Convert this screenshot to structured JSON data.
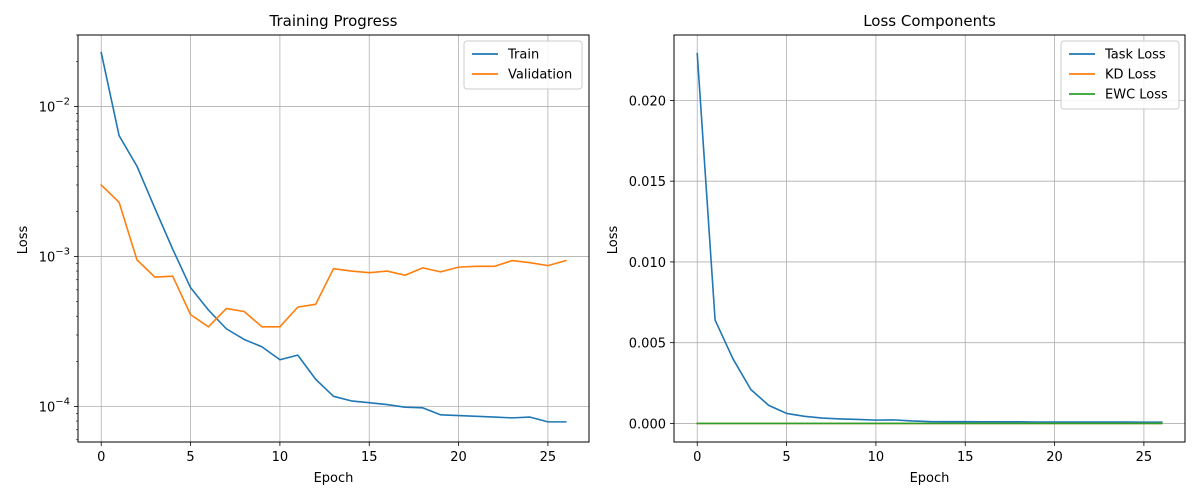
{
  "chart_data": [
    {
      "type": "line",
      "title": "Training Progress",
      "xlabel": "Epoch",
      "ylabel": "Loss",
      "yscale": "log",
      "xlim": [
        -1.3,
        27.3
      ],
      "ylim": [
        5.8e-05,
        0.03
      ],
      "grid": true,
      "legend_position": "top-right",
      "x": [
        0,
        1,
        2,
        3,
        4,
        5,
        6,
        7,
        8,
        9,
        10,
        11,
        12,
        13,
        14,
        15,
        16,
        17,
        18,
        19,
        20,
        21,
        22,
        23,
        24,
        25,
        26
      ],
      "x_ticks": [
        0,
        5,
        10,
        15,
        20,
        25
      ],
      "y_ticks": [
        {
          "base": "10",
          "exp": "−2",
          "value": 0.01
        },
        {
          "base": "10",
          "exp": "−3",
          "value": 0.001
        },
        {
          "base": "10",
          "exp": "−4",
          "value": 0.0001
        }
      ],
      "series": [
        {
          "name": "Train",
          "color": "#1f77b4",
          "values": [
            0.0229,
            0.0064,
            0.004,
            0.0021,
            0.00112,
            0.00062,
            0.00044,
            0.00033,
            0.00028,
            0.00025,
            0.000205,
            0.00022,
            0.000152,
            0.000117,
            0.000109,
            0.000106,
            0.000103,
            9.9e-05,
            9.8e-05,
            8.8e-05,
            8.7e-05,
            8.6e-05,
            8.5e-05,
            8.4e-05,
            8.5e-05,
            7.9e-05,
            7.9e-05
          ]
        },
        {
          "name": "Validation",
          "color": "#ff7f0e",
          "values": [
            0.003,
            0.0023,
            0.00095,
            0.00073,
            0.00074,
            0.00041,
            0.00034,
            0.00045,
            0.00043,
            0.00034,
            0.00034,
            0.00046,
            0.00048,
            0.00083,
            0.0008,
            0.00078,
            0.0008,
            0.00075,
            0.00084,
            0.00079,
            0.00085,
            0.00086,
            0.00086,
            0.00094,
            0.00091,
            0.00087,
            0.00094
          ]
        }
      ]
    },
    {
      "type": "line",
      "title": "Loss Components",
      "xlabel": "Epoch",
      "ylabel": "Loss",
      "yscale": "linear",
      "xlim": [
        -1.3,
        27.3
      ],
      "ylim": [
        -0.00115,
        0.02405
      ],
      "grid": true,
      "legend_position": "top-right",
      "x": [
        0,
        1,
        2,
        3,
        4,
        5,
        6,
        7,
        8,
        9,
        10,
        11,
        12,
        13,
        14,
        15,
        16,
        17,
        18,
        19,
        20,
        21,
        22,
        23,
        24,
        25,
        26
      ],
      "x_ticks": [
        0,
        5,
        10,
        15,
        20,
        25
      ],
      "y_ticks": [
        "0.000",
        "0.005",
        "0.010",
        "0.015",
        "0.020"
      ],
      "series": [
        {
          "name": "Task Loss",
          "color": "#1f77b4",
          "values": [
            0.0229,
            0.0064,
            0.004,
            0.0021,
            0.00112,
            0.00062,
            0.00044,
            0.00033,
            0.00028,
            0.00025,
            0.000205,
            0.00022,
            0.000152,
            0.000117,
            0.000109,
            0.000106,
            0.000103,
            9.9e-05,
            9.8e-05,
            8.8e-05,
            8.7e-05,
            8.6e-05,
            8.5e-05,
            8.4e-05,
            8.5e-05,
            7.9e-05,
            7.9e-05
          ]
        },
        {
          "name": "KD Loss",
          "color": "#ff7f0e",
          "values": [
            0,
            0,
            0,
            0,
            0,
            0,
            0,
            0,
            0,
            0,
            0,
            0,
            0,
            0,
            0,
            0,
            0,
            0,
            0,
            0,
            0,
            0,
            0,
            0,
            0,
            0,
            0
          ]
        },
        {
          "name": "EWC Loss",
          "color": "#2ca02c",
          "values": [
            0,
            0,
            0,
            0,
            0,
            0,
            0,
            0,
            0,
            0,
            0,
            0,
            0,
            0,
            0,
            0,
            0,
            0,
            0,
            0,
            0,
            0,
            0,
            0,
            0,
            0,
            0
          ]
        }
      ]
    }
  ]
}
